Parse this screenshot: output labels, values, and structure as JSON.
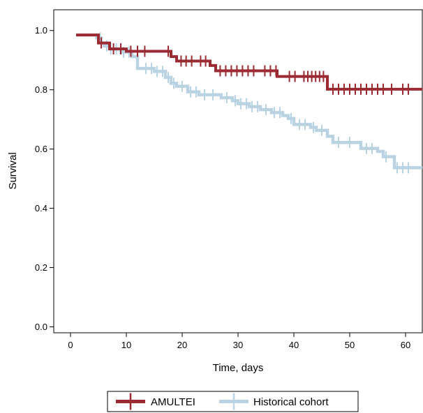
{
  "chart_data": {
    "type": "line",
    "subtype": "kaplan-meier step",
    "title": "",
    "xlabel": "Time, days",
    "ylabel": "Survival",
    "xlim": [
      -3,
      63
    ],
    "ylim": [
      -0.02,
      1.07
    ],
    "xticks": [
      0,
      10,
      20,
      30,
      40,
      50,
      60
    ],
    "yticks": [
      0.0,
      0.2,
      0.4,
      0.6,
      0.8,
      1.0
    ],
    "xtick_labels": [
      "0",
      "10",
      "20",
      "30",
      "40",
      "50",
      "60"
    ],
    "ytick_labels": [
      "0.0",
      "0.2",
      "0.4",
      "0.6",
      "0.8",
      "1.0"
    ],
    "grid": false,
    "legend_position": "bottom-center",
    "series": [
      {
        "name": "Historical cohort",
        "color": "#b9d3e3",
        "steps": [
          [
            1,
            0.985
          ],
          [
            4.7,
            0.975
          ],
          [
            5.5,
            0.958
          ],
          [
            6,
            0.948
          ],
          [
            7,
            0.938
          ],
          [
            9,
            0.927
          ],
          [
            11,
            0.912
          ],
          [
            12,
            0.872
          ],
          [
            15,
            0.862
          ],
          [
            17,
            0.842
          ],
          [
            18,
            0.822
          ],
          [
            19,
            0.812
          ],
          [
            21,
            0.793
          ],
          [
            23,
            0.783
          ],
          [
            27,
            0.773
          ],
          [
            29,
            0.763
          ],
          [
            30,
            0.753
          ],
          [
            32,
            0.743
          ],
          [
            34,
            0.733
          ],
          [
            36,
            0.723
          ],
          [
            38,
            0.713
          ],
          [
            39,
            0.703
          ],
          [
            40,
            0.683
          ],
          [
            43,
            0.673
          ],
          [
            44,
            0.663
          ],
          [
            46,
            0.643
          ],
          [
            47,
            0.622
          ],
          [
            52,
            0.602
          ],
          [
            55,
            0.592
          ],
          [
            56,
            0.574
          ],
          [
            58,
            0.537
          ],
          [
            63,
            0.537
          ]
        ],
        "censor_x": [
          5.3,
          6.5,
          7.2,
          8.2,
          9.5,
          10.5,
          13.5,
          14.5,
          15.5,
          16.5,
          17.5,
          18.5,
          20,
          21.5,
          22.5,
          24,
          25.5,
          28,
          29.5,
          30.5,
          31.5,
          32.5,
          33.5,
          35,
          36.5,
          37.5,
          39.5,
          41,
          42,
          43.5,
          45,
          48,
          50,
          53,
          54,
          56.5,
          58.5,
          59.5,
          60.5
        ]
      },
      {
        "name": "AMULTEI",
        "color": "#9b2a33",
        "steps": [
          [
            1,
            0.985
          ],
          [
            5,
            0.958
          ],
          [
            7,
            0.938
          ],
          [
            10,
            0.93
          ],
          [
            18,
            0.912
          ],
          [
            19,
            0.897
          ],
          [
            25,
            0.882
          ],
          [
            26,
            0.864
          ],
          [
            37,
            0.845
          ],
          [
            46,
            0.802
          ],
          [
            63,
            0.802
          ]
        ],
        "censor_x": [
          5.5,
          7.7,
          9,
          10.8,
          12,
          13.3,
          17.5,
          19.8,
          20.7,
          21.7,
          23.3,
          24.2,
          26.8,
          27.8,
          28.8,
          29.8,
          30.8,
          31.8,
          32.8,
          34.8,
          35.8,
          36.8,
          39.2,
          40.2,
          41.8,
          42.5,
          43.2,
          43.9,
          44.6,
          45.3,
          47,
          48,
          49,
          50,
          51,
          52,
          53,
          54,
          55,
          56,
          57.5,
          59.5,
          60.5
        ]
      }
    ],
    "legend": [
      "AMULTEI",
      "Historical cohort"
    ]
  }
}
